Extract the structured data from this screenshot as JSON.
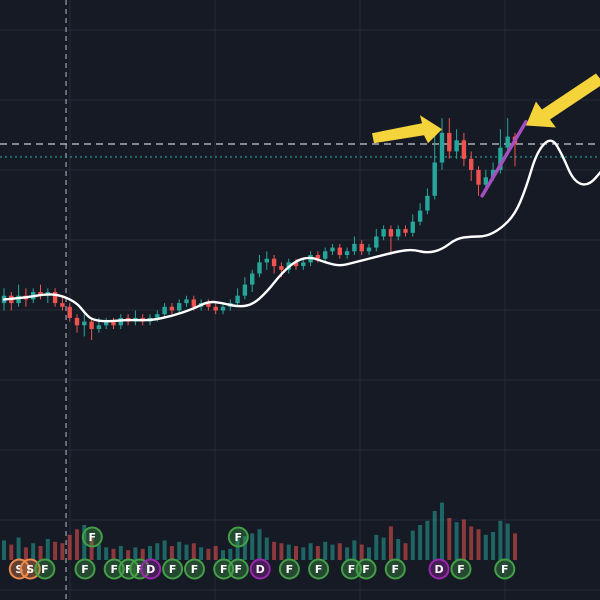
{
  "colors": {
    "background": "#161a25",
    "grid": "#262b38",
    "up_candle": "#26a69a",
    "down_candle": "#ef5350",
    "moving_average": "#ffffff",
    "crosshair": "#9aa0ad",
    "price_line": "#c8cbd2",
    "dotted_line": "#26a69a",
    "arrow": "#f5d33a",
    "trendline": "#a34fc0",
    "marker_F": "#43a047",
    "marker_D": "#9c27b0",
    "marker_S": "#f08a4b"
  },
  "icons": {
    "arrow_left": "yellow-arrow-right-pointing",
    "arrow_right": "yellow-arrow-left-pointing"
  },
  "chart_data": {
    "type": "candlestick",
    "title": "",
    "xlabel": "",
    "ylabel": "",
    "grid": true,
    "ylim": [
      0,
      100
    ],
    "volume_ylim": [
      0,
      100
    ],
    "moving_average": [
      {
        "x": 0,
        "y": 38
      },
      {
        "x": 3,
        "y": 38.5
      },
      {
        "x": 6,
        "y": 39.5
      },
      {
        "x": 8,
        "y": 39
      },
      {
        "x": 10,
        "y": 37
      },
      {
        "x": 11,
        "y": 34.5
      },
      {
        "x": 12,
        "y": 32.5
      },
      {
        "x": 14,
        "y": 32
      },
      {
        "x": 17,
        "y": 32.5
      },
      {
        "x": 20,
        "y": 32.3
      },
      {
        "x": 23,
        "y": 33.5
      },
      {
        "x": 26,
        "y": 35.5
      },
      {
        "x": 28,
        "y": 37.5
      },
      {
        "x": 30,
        "y": 37
      },
      {
        "x": 32,
        "y": 36
      },
      {
        "x": 34,
        "y": 36.5
      },
      {
        "x": 36,
        "y": 40
      },
      {
        "x": 38,
        "y": 45
      },
      {
        "x": 40,
        "y": 48.5
      },
      {
        "x": 42,
        "y": 49.5
      },
      {
        "x": 44,
        "y": 48
      },
      {
        "x": 46,
        "y": 47
      },
      {
        "x": 48,
        "y": 48
      },
      {
        "x": 51,
        "y": 49.5
      },
      {
        "x": 54,
        "y": 51
      },
      {
        "x": 56,
        "y": 51.5
      },
      {
        "x": 58,
        "y": 50.5
      },
      {
        "x": 60,
        "y": 51.5
      },
      {
        "x": 62,
        "y": 54.5
      },
      {
        "x": 64,
        "y": 55
      },
      {
        "x": 66,
        "y": 55
      },
      {
        "x": 68,
        "y": 57
      },
      {
        "x": 70,
        "y": 61
      },
      {
        "x": 71.5,
        "y": 68
      },
      {
        "x": 73,
        "y": 78
      },
      {
        "x": 75,
        "y": 82
      },
      {
        "x": 76.5,
        "y": 77
      },
      {
        "x": 78,
        "y": 70
      },
      {
        "x": 80,
        "y": 68.5
      },
      {
        "x": 82,
        "y": 73
      },
      {
        "x": 84,
        "y": 78
      },
      {
        "x": 85,
        "y": 80
      }
    ],
    "candles": [
      [
        0,
        37,
        39,
        41,
        35,
        14
      ],
      [
        1,
        39,
        37,
        40,
        35,
        11
      ],
      [
        2,
        37,
        39,
        42,
        36,
        16
      ],
      [
        3,
        39,
        38,
        41,
        36,
        9
      ],
      [
        4,
        38,
        40,
        41,
        37,
        12
      ],
      [
        5,
        40,
        39,
        42,
        38,
        10
      ],
      [
        6,
        39,
        40,
        41,
        37,
        15
      ],
      [
        7,
        40,
        37,
        41,
        36,
        13
      ],
      [
        8,
        37,
        36,
        39,
        35,
        12
      ],
      [
        9,
        36,
        33,
        37,
        32,
        18
      ],
      [
        10,
        33,
        31,
        34,
        29,
        22
      ],
      [
        11,
        31,
        32,
        34,
        28,
        25
      ],
      [
        12,
        32,
        30,
        33,
        27,
        16
      ],
      [
        13,
        30,
        31,
        33,
        29,
        11
      ],
      [
        14,
        31,
        32,
        33,
        30,
        9
      ],
      [
        15,
        32,
        31,
        33,
        30,
        8
      ],
      [
        16,
        31,
        33,
        34,
        30,
        10
      ],
      [
        17,
        33,
        32,
        34,
        31,
        7
      ],
      [
        18,
        32,
        33,
        35,
        31,
        9
      ],
      [
        19,
        33,
        32,
        34,
        31,
        8
      ],
      [
        20,
        32,
        33,
        34,
        31,
        10
      ],
      [
        21,
        33,
        34,
        35,
        32,
        12
      ],
      [
        22,
        34,
        36,
        37,
        33,
        14
      ],
      [
        23,
        36,
        35,
        37,
        34,
        10
      ],
      [
        24,
        35,
        37,
        38,
        34,
        13
      ],
      [
        25,
        37,
        38,
        39,
        36,
        11
      ],
      [
        26,
        38,
        36,
        39,
        35,
        12
      ],
      [
        27,
        36,
        37,
        38,
        35,
        9
      ],
      [
        28,
        37,
        36,
        38,
        35,
        8
      ],
      [
        29,
        36,
        35,
        37,
        34,
        10
      ],
      [
        30,
        35,
        36,
        37,
        34,
        7
      ],
      [
        31,
        36,
        37,
        38,
        35,
        8
      ],
      [
        32,
        37,
        39,
        41,
        36,
        15
      ],
      [
        33,
        39,
        42,
        44,
        38,
        17
      ],
      [
        34,
        42,
        45,
        46,
        40,
        19
      ],
      [
        35,
        45,
        48,
        50,
        44,
        22
      ],
      [
        36,
        48,
        49,
        51,
        46,
        16
      ],
      [
        37,
        49,
        47,
        50,
        45,
        13
      ],
      [
        38,
        47,
        46,
        48,
        44,
        12
      ],
      [
        39,
        46,
        48,
        49,
        45,
        11
      ],
      [
        40,
        48,
        47,
        49,
        46,
        10
      ],
      [
        41,
        47,
        48,
        49,
        46,
        9
      ],
      [
        42,
        48,
        50,
        51,
        47,
        12
      ],
      [
        43,
        50,
        49,
        51,
        48,
        10
      ],
      [
        44,
        49,
        51,
        52,
        48,
        13
      ],
      [
        45,
        51,
        52,
        53,
        50,
        11
      ],
      [
        46,
        52,
        50,
        53,
        49,
        12
      ],
      [
        47,
        50,
        51,
        52,
        49,
        9
      ],
      [
        48,
        51,
        53,
        55,
        50,
        14
      ],
      [
        49,
        53,
        51,
        54,
        50,
        11
      ],
      [
        50,
        51,
        52,
        53,
        50,
        9
      ],
      [
        51,
        52,
        55,
        57,
        51,
        18
      ],
      [
        52,
        55,
        57,
        58,
        54,
        16
      ],
      [
        53,
        57,
        55,
        58,
        50,
        24
      ],
      [
        54,
        55,
        57,
        58,
        54,
        15
      ],
      [
        55,
        57,
        56,
        58,
        55,
        12
      ],
      [
        56,
        56,
        59,
        61,
        55,
        21
      ],
      [
        57,
        59,
        62,
        64,
        58,
        25
      ],
      [
        58,
        62,
        66,
        68,
        61,
        28
      ],
      [
        59,
        66,
        75,
        83,
        65,
        35
      ],
      [
        60,
        75,
        83,
        87,
        73,
        41
      ],
      [
        61,
        83,
        78,
        87,
        76,
        30
      ],
      [
        62,
        78,
        81,
        84,
        76,
        27
      ],
      [
        63,
        81,
        76,
        83,
        74,
        29
      ],
      [
        64,
        76,
        73,
        78,
        70,
        24
      ],
      [
        65,
        73,
        69,
        74,
        66,
        22
      ],
      [
        66,
        69,
        71,
        73,
        68,
        18
      ],
      [
        67,
        71,
        73,
        75,
        70,
        20
      ],
      [
        68,
        73,
        79,
        84,
        72,
        28
      ],
      [
        69,
        79,
        82,
        87,
        78,
        26
      ],
      [
        70,
        82,
        80,
        83,
        74,
        19
      ]
    ],
    "resistance_level": 80,
    "cyan_level": 76.5,
    "crosshair_x": 8.5,
    "trendline": {
      "x1": 65.5,
      "y1": 66,
      "x2": 71.5,
      "y2": 86
    },
    "arrows": [
      {
        "direction": "right",
        "tip_x": 60,
        "tip_y": 84
      },
      {
        "direction": "left",
        "tip_x": 71.5,
        "tip_y": 85
      }
    ],
    "markers": [
      {
        "x": 1,
        "row": 0,
        "label": "S",
        "kind": "S"
      },
      {
        "x": 2.5,
        "row": 0,
        "label": "S",
        "kind": "S"
      },
      {
        "x": 4.5,
        "row": 0,
        "label": "F",
        "kind": "F"
      },
      {
        "x": 10,
        "row": 0,
        "label": "F",
        "kind": "F"
      },
      {
        "x": 11,
        "row": 1,
        "label": "F",
        "kind": "F"
      },
      {
        "x": 14,
        "row": 0,
        "label": "F",
        "kind": "F"
      },
      {
        "x": 16,
        "row": 0,
        "label": "F",
        "kind": "F"
      },
      {
        "x": 17.5,
        "row": 0,
        "label": "F",
        "kind": "F"
      },
      {
        "x": 19,
        "row": 0,
        "label": "D",
        "kind": "D"
      },
      {
        "x": 22,
        "row": 0,
        "label": "F",
        "kind": "F"
      },
      {
        "x": 25,
        "row": 0,
        "label": "F",
        "kind": "F"
      },
      {
        "x": 29,
        "row": 0,
        "label": "F",
        "kind": "F"
      },
      {
        "x": 31,
        "row": 0,
        "label": "F",
        "kind": "F"
      },
      {
        "x": 31,
        "row": 1,
        "label": "F",
        "kind": "F"
      },
      {
        "x": 34,
        "row": 0,
        "label": "D",
        "kind": "D"
      },
      {
        "x": 38,
        "row": 0,
        "label": "F",
        "kind": "F"
      },
      {
        "x": 42,
        "row": 0,
        "label": "F",
        "kind": "F"
      },
      {
        "x": 46.5,
        "row": 0,
        "label": "F",
        "kind": "F"
      },
      {
        "x": 48.5,
        "row": 0,
        "label": "F",
        "kind": "F"
      },
      {
        "x": 52.5,
        "row": 0,
        "label": "F",
        "kind": "F"
      },
      {
        "x": 58.5,
        "row": 0,
        "label": "D",
        "kind": "D"
      },
      {
        "x": 61.5,
        "row": 0,
        "label": "F",
        "kind": "F"
      },
      {
        "x": 67.5,
        "row": 0,
        "label": "F",
        "kind": "F"
      }
    ]
  }
}
